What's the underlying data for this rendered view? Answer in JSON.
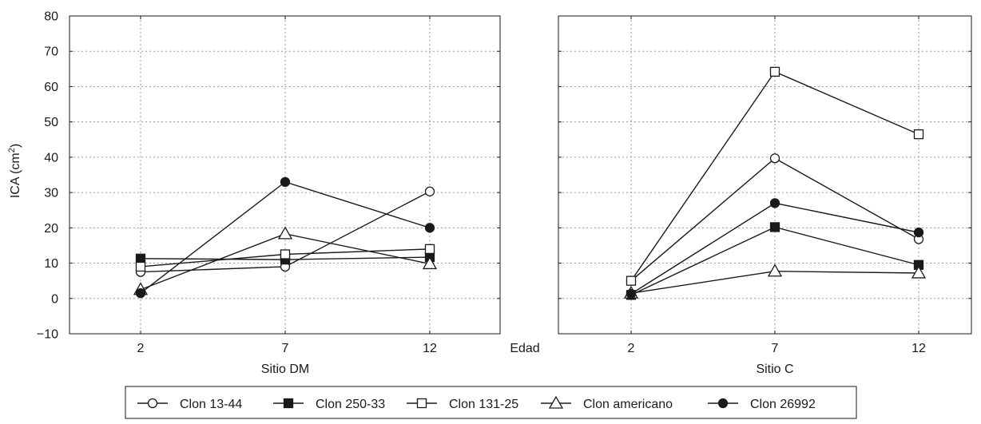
{
  "chart_data": {
    "type": "line",
    "ylabel_main": "ICA (cm",
    "ylabel_sup": "2",
    "ylabel_close": ")",
    "shared_xlabel": "Edad",
    "ylim": [
      -10,
      80
    ],
    "yticks": [
      -10,
      0,
      10,
      20,
      30,
      40,
      50,
      60,
      70,
      80
    ],
    "categories": [
      2,
      7,
      12
    ],
    "grid": true,
    "legend_position": "bottom",
    "panels": [
      {
        "xlabel": "Sitio DM",
        "series": [
          {
            "name": "Clon 13-44",
            "marker": "circle-open",
            "values": [
              7.5,
              9,
              30.3
            ]
          },
          {
            "name": "Clon 250-33",
            "marker": "square-filled",
            "values": [
              11.3,
              11,
              11.7
            ]
          },
          {
            "name": "Clon 131-25",
            "marker": "square-open",
            "values": [
              9,
              12.5,
              14
            ]
          },
          {
            "name": "Clon americano",
            "marker": "triangle-open",
            "values": [
              2.5,
              18.3,
              9.8
            ]
          },
          {
            "name": "Clon 26992",
            "marker": "circle-filled",
            "values": [
              1.5,
              33,
              20
            ]
          }
        ]
      },
      {
        "xlabel": "Sitio C",
        "series": [
          {
            "name": "Clon 13-44",
            "marker": "circle-open",
            "values": [
              5,
              39.7,
              16.8
            ]
          },
          {
            "name": "Clon 250-33",
            "marker": "square-filled",
            "values": [
              1,
              20.2,
              9.5
            ]
          },
          {
            "name": "Clon 131-25",
            "marker": "square-open",
            "values": [
              5,
              64.2,
              46.5
            ]
          },
          {
            "name": "Clon americano",
            "marker": "triangle-open",
            "values": [
              1.5,
              7.7,
              7.2
            ]
          },
          {
            "name": "Clon 26992",
            "marker": "circle-filled",
            "values": [
              1.3,
              27,
              18.7
            ]
          }
        ]
      }
    ],
    "legend": [
      "Clon 13-44",
      "Clon 250-33",
      "Clon 131-25",
      "Clon americano",
      "Clon 26992"
    ]
  }
}
